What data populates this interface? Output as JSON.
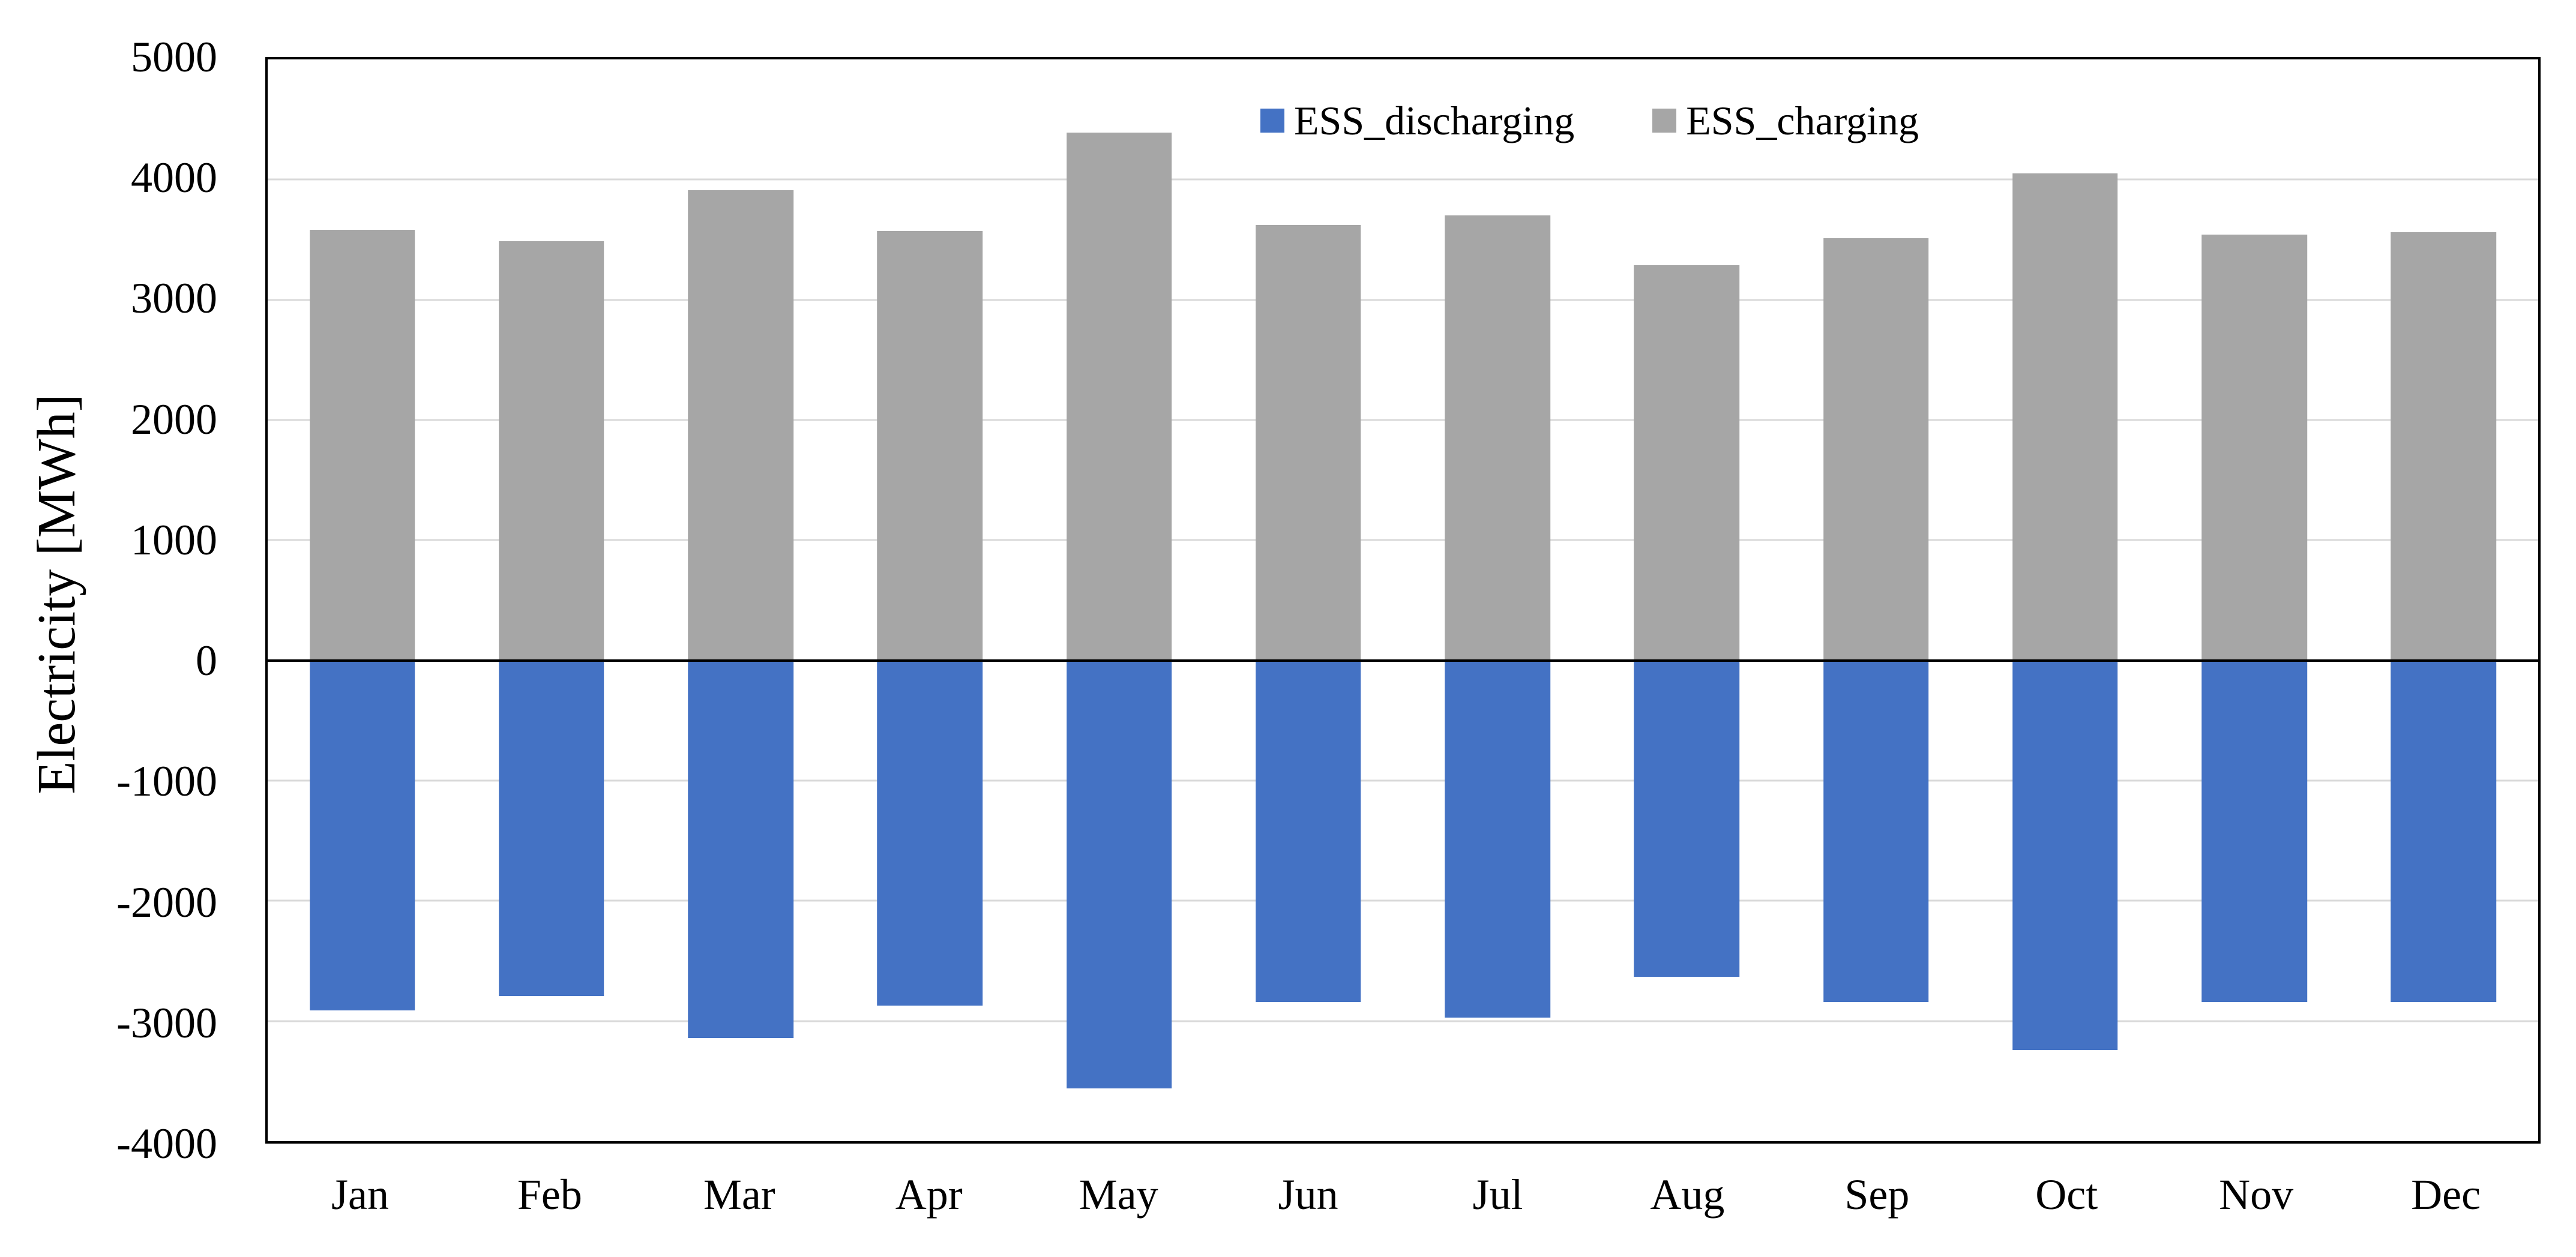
{
  "chart_data": {
    "type": "bar",
    "subtype": "diverging-column",
    "title": "",
    "xlabel": "",
    "ylabel": "Electricity [MWh]",
    "categories": [
      "Jan",
      "Feb",
      "Mar",
      "Apr",
      "May",
      "Jun",
      "Jul",
      "Aug",
      "Sep",
      "Oct",
      "Nov",
      "Dec"
    ],
    "series": [
      {
        "name": "ESS_discharging",
        "color": "#4472C4",
        "values": [
          -2910,
          -2790,
          -3140,
          -2870,
          -3560,
          -2840,
          -2970,
          -2630,
          -2840,
          -3240,
          -2840,
          -2840
        ]
      },
      {
        "name": "ESS_charging",
        "color": "#A6A6A6",
        "values": [
          3580,
          3490,
          3910,
          3570,
          4390,
          3620,
          3700,
          3290,
          3510,
          4050,
          3540,
          3560
        ]
      }
    ],
    "ylim": [
      -4000,
      5000
    ],
    "ytick_step": 1000,
    "grid": "horizontal",
    "gridline_color": "#D9D9D9",
    "zero_line_color": "#000000",
    "frame_color": "#000000",
    "legend_position": "top-inside-right"
  }
}
